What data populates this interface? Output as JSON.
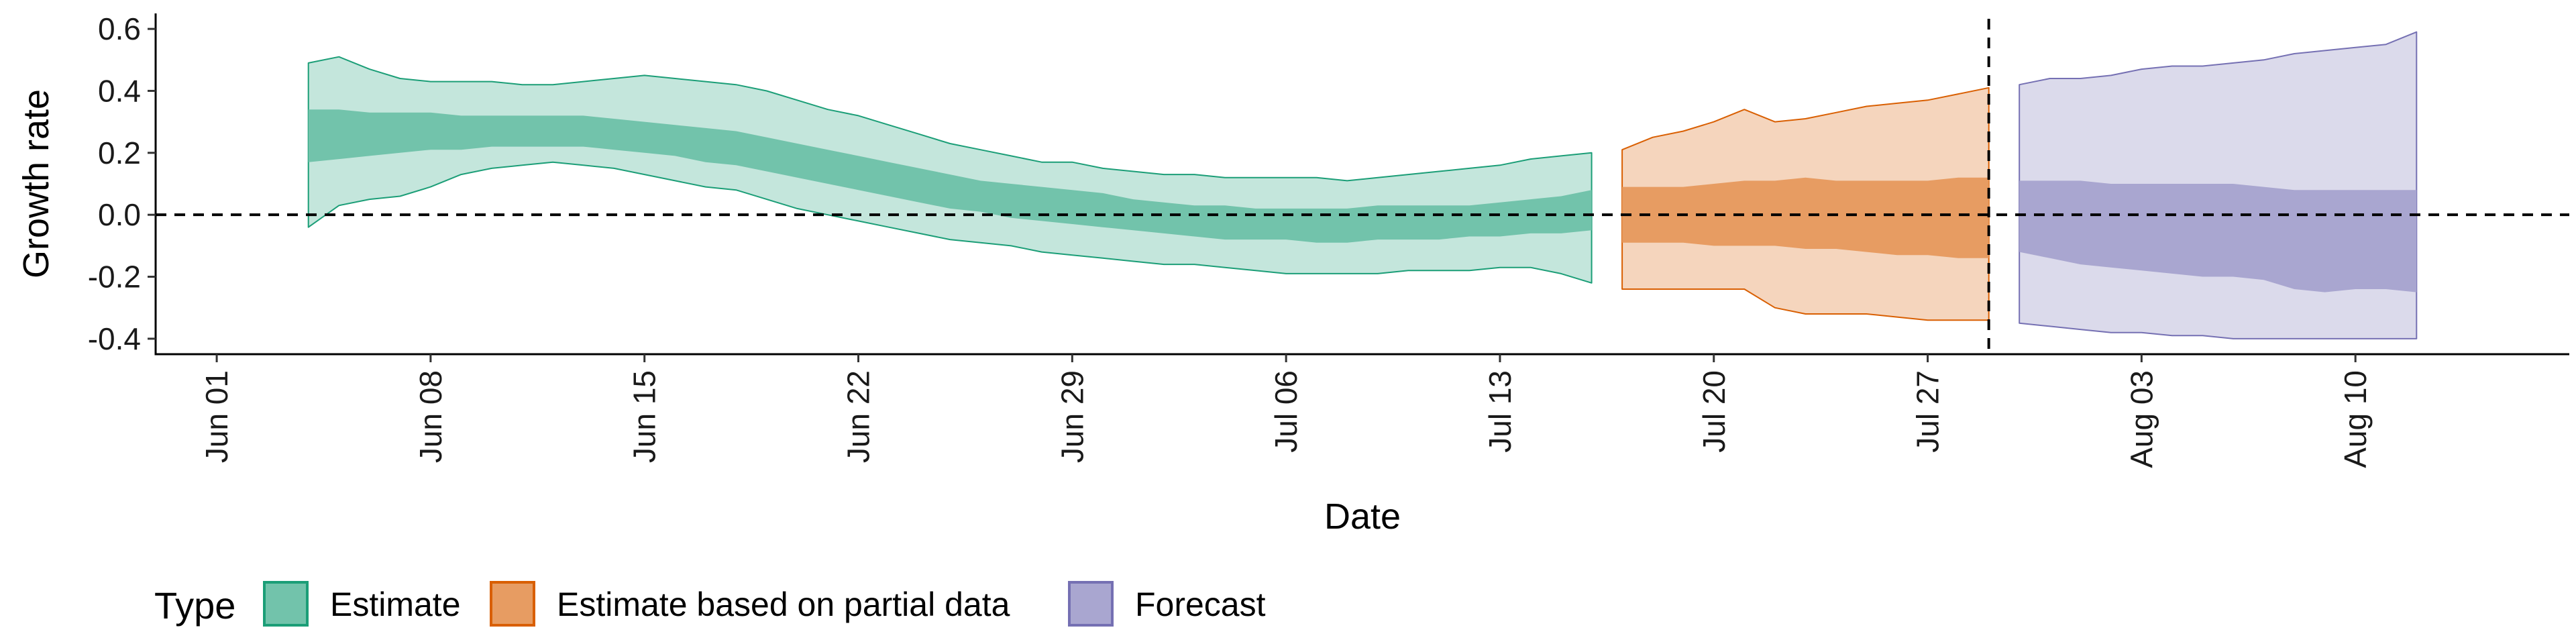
{
  "chart_data": {
    "type": "area",
    "title": "",
    "xlabel": "Date",
    "ylabel": "Growth rate",
    "x_type": "date",
    "xlim": [
      "2020-05-30",
      "2020-08-17"
    ],
    "ylim": [
      -0.45,
      0.65
    ],
    "yticks": [
      -0.4,
      -0.2,
      0.0,
      0.2,
      0.4,
      0.6
    ],
    "ytick_labels": [
      "-0.4",
      "-0.2",
      "0.0",
      "0.2",
      "0.4",
      "0.6"
    ],
    "xticks": [
      "2020-06-01",
      "2020-06-08",
      "2020-06-15",
      "2020-06-22",
      "2020-06-29",
      "2020-07-06",
      "2020-07-13",
      "2020-07-20",
      "2020-07-27",
      "2020-08-03",
      "2020-08-10"
    ],
    "xtick_labels": [
      "Jun 01",
      "Jun 08",
      "Jun 15",
      "Jun 22",
      "Jun 29",
      "Jul 06",
      "Jul 13",
      "Jul 20",
      "Jul 27",
      "Aug 03",
      "Aug 10"
    ],
    "reference_lines": {
      "horizontal_y": 0.0,
      "vertical_x": "2020-07-29",
      "style": "dashed"
    },
    "grid": false,
    "legend": {
      "title": "Type",
      "position": "bottom-left"
    },
    "series": [
      {
        "name": "Estimate",
        "fill_color": "#1b9e77",
        "dates": [
          "2020-06-04",
          "2020-06-05",
          "2020-06-06",
          "2020-06-07",
          "2020-06-08",
          "2020-06-09",
          "2020-06-10",
          "2020-06-11",
          "2020-06-12",
          "2020-06-13",
          "2020-06-14",
          "2020-06-15",
          "2020-06-16",
          "2020-06-17",
          "2020-06-18",
          "2020-06-19",
          "2020-06-20",
          "2020-06-21",
          "2020-06-22",
          "2020-06-23",
          "2020-06-24",
          "2020-06-25",
          "2020-06-26",
          "2020-06-27",
          "2020-06-28",
          "2020-06-29",
          "2020-06-30",
          "2020-07-01",
          "2020-07-02",
          "2020-07-03",
          "2020-07-04",
          "2020-07-05",
          "2020-07-06",
          "2020-07-07",
          "2020-07-08",
          "2020-07-09",
          "2020-07-10",
          "2020-07-11",
          "2020-07-12",
          "2020-07-13",
          "2020-07-14",
          "2020-07-15",
          "2020-07-16"
        ],
        "upper_90": [
          0.49,
          0.51,
          0.47,
          0.44,
          0.43,
          0.43,
          0.43,
          0.42,
          0.42,
          0.43,
          0.44,
          0.45,
          0.44,
          0.43,
          0.42,
          0.4,
          0.37,
          0.34,
          0.32,
          0.29,
          0.26,
          0.23,
          0.21,
          0.19,
          0.17,
          0.17,
          0.15,
          0.14,
          0.13,
          0.13,
          0.12,
          0.12,
          0.12,
          0.12,
          0.11,
          0.12,
          0.13,
          0.14,
          0.15,
          0.16,
          0.18,
          0.19,
          0.2
        ],
        "upper_50": [
          0.34,
          0.34,
          0.33,
          0.33,
          0.33,
          0.32,
          0.32,
          0.32,
          0.32,
          0.32,
          0.31,
          0.3,
          0.29,
          0.28,
          0.27,
          0.25,
          0.23,
          0.21,
          0.19,
          0.17,
          0.15,
          0.13,
          0.11,
          0.1,
          0.09,
          0.08,
          0.07,
          0.05,
          0.04,
          0.03,
          0.03,
          0.02,
          0.02,
          0.02,
          0.02,
          0.03,
          0.03,
          0.03,
          0.03,
          0.04,
          0.05,
          0.06,
          0.08
        ],
        "lower_50": [
          0.17,
          0.18,
          0.19,
          0.2,
          0.21,
          0.21,
          0.22,
          0.22,
          0.22,
          0.22,
          0.21,
          0.2,
          0.19,
          0.17,
          0.16,
          0.14,
          0.12,
          0.1,
          0.08,
          0.06,
          0.04,
          0.02,
          0.01,
          -0.01,
          -0.02,
          -0.03,
          -0.04,
          -0.05,
          -0.06,
          -0.07,
          -0.08,
          -0.08,
          -0.08,
          -0.09,
          -0.09,
          -0.08,
          -0.08,
          -0.08,
          -0.07,
          -0.07,
          -0.06,
          -0.06,
          -0.05
        ],
        "lower_90": [
          -0.04,
          0.03,
          0.05,
          0.06,
          0.09,
          0.13,
          0.15,
          0.16,
          0.17,
          0.16,
          0.15,
          0.13,
          0.11,
          0.09,
          0.08,
          0.05,
          0.02,
          0.0,
          -0.02,
          -0.04,
          -0.06,
          -0.08,
          -0.09,
          -0.1,
          -0.12,
          -0.13,
          -0.14,
          -0.15,
          -0.16,
          -0.16,
          -0.17,
          -0.18,
          -0.19,
          -0.19,
          -0.19,
          -0.19,
          -0.18,
          -0.18,
          -0.18,
          -0.17,
          -0.17,
          -0.19,
          -0.22
        ]
      },
      {
        "name": "Estimate based on partial data",
        "fill_color": "#d95f02",
        "dates": [
          "2020-07-17",
          "2020-07-18",
          "2020-07-19",
          "2020-07-20",
          "2020-07-21",
          "2020-07-22",
          "2020-07-23",
          "2020-07-24",
          "2020-07-25",
          "2020-07-26",
          "2020-07-27",
          "2020-07-28",
          "2020-07-29"
        ],
        "upper_90": [
          0.21,
          0.25,
          0.27,
          0.3,
          0.34,
          0.3,
          0.31,
          0.33,
          0.35,
          0.36,
          0.37,
          0.39,
          0.41
        ],
        "upper_50": [
          0.09,
          0.09,
          0.09,
          0.1,
          0.11,
          0.11,
          0.12,
          0.11,
          0.11,
          0.11,
          0.11,
          0.12,
          0.12
        ],
        "lower_50": [
          -0.09,
          -0.09,
          -0.09,
          -0.1,
          -0.1,
          -0.1,
          -0.11,
          -0.11,
          -0.12,
          -0.13,
          -0.13,
          -0.14,
          -0.14
        ],
        "lower_90": [
          -0.24,
          -0.24,
          -0.24,
          -0.24,
          -0.24,
          -0.3,
          -0.32,
          -0.32,
          -0.32,
          -0.33,
          -0.34,
          -0.34,
          -0.34
        ]
      },
      {
        "name": "Forecast",
        "fill_color": "#7570b3",
        "dates": [
          "2020-07-30",
          "2020-07-31",
          "2020-08-01",
          "2020-08-02",
          "2020-08-03",
          "2020-08-04",
          "2020-08-05",
          "2020-08-06",
          "2020-08-07",
          "2020-08-08",
          "2020-08-09",
          "2020-08-10",
          "2020-08-11",
          "2020-08-12"
        ],
        "upper_90": [
          0.42,
          0.44,
          0.44,
          0.45,
          0.47,
          0.48,
          0.48,
          0.49,
          0.5,
          0.52,
          0.53,
          0.54,
          0.55,
          0.59
        ],
        "upper_50": [
          0.11,
          0.11,
          0.11,
          0.1,
          0.1,
          0.1,
          0.1,
          0.1,
          0.09,
          0.08,
          0.08,
          0.08,
          0.08,
          0.08
        ],
        "lower_50": [
          -0.12,
          -0.14,
          -0.16,
          -0.17,
          -0.18,
          -0.19,
          -0.2,
          -0.2,
          -0.21,
          -0.24,
          -0.25,
          -0.24,
          -0.24,
          -0.25
        ],
        "lower_90": [
          -0.35,
          -0.36,
          -0.37,
          -0.38,
          -0.38,
          -0.39,
          -0.39,
          -0.4,
          -0.4,
          -0.4,
          -0.4,
          -0.4,
          -0.4,
          -0.4
        ]
      }
    ]
  }
}
